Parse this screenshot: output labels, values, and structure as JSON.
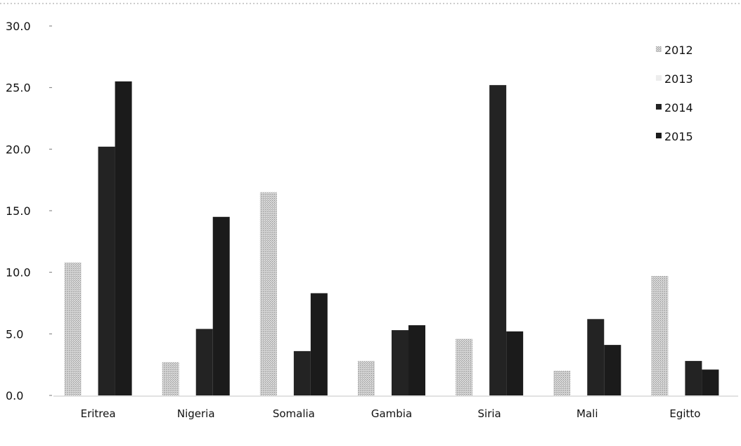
{
  "chart_data": {
    "type": "bar",
    "title": "",
    "xlabel": "",
    "ylabel": "",
    "categories": [
      "Eritrea",
      "Nigeria",
      "Somalia",
      "Gambia",
      "Siria",
      "Mali",
      "Egitto"
    ],
    "series": [
      {
        "name": "2012",
        "values": [
          10.8,
          2.7,
          16.5,
          2.8,
          4.6,
          2.0,
          9.7
        ],
        "color": "#b8b8b8"
      },
      {
        "name": "2013",
        "values": [
          0,
          0,
          0,
          0,
          0,
          0,
          0
        ],
        "color": "#ececec"
      },
      {
        "name": "2014",
        "values": [
          20.2,
          5.4,
          3.6,
          5.3,
          25.2,
          6.2,
          2.8
        ],
        "color": "#222222"
      },
      {
        "name": "2015",
        "values": [
          25.5,
          14.5,
          8.3,
          5.7,
          5.2,
          4.1,
          2.1
        ],
        "color": "#222222"
      }
    ],
    "ylim": [
      0,
      30
    ],
    "yticks": [
      "0.0",
      "5.0",
      "10.0",
      "15.0",
      "20.0",
      "25.0",
      "30.0"
    ],
    "grid": false,
    "legend_position": "top-right"
  }
}
